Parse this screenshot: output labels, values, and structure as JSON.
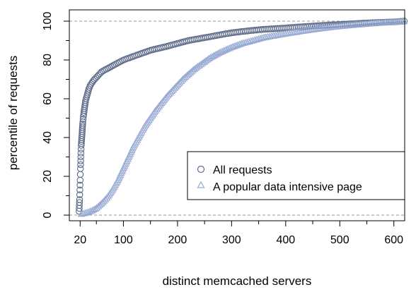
{
  "chart_data": {
    "type": "scatter",
    "title": "",
    "xlabel": "distinct memcached servers",
    "ylabel": "percentile of requests",
    "xlim": [
      0,
      620
    ],
    "ylim": [
      0,
      100
    ],
    "x_ticks": [
      20,
      100,
      200,
      300,
      400,
      500,
      600
    ],
    "y_ticks": [
      0,
      20,
      40,
      60,
      80,
      100
    ],
    "reference_lines_y": [
      0,
      100
    ],
    "grid": false,
    "legend_position": "bottom-right",
    "series": [
      {
        "name": "All requests",
        "marker": "circle",
        "color": "#5c6b8a",
        "points": [
          [
            18,
            2
          ],
          [
            19,
            8
          ],
          [
            19.5,
            13
          ],
          [
            20,
            18
          ],
          [
            20.5,
            24
          ],
          [
            21,
            28
          ],
          [
            21.5,
            32
          ],
          [
            22,
            36
          ],
          [
            23,
            40
          ],
          [
            24,
            44
          ],
          [
            25,
            48
          ],
          [
            26,
            51
          ],
          [
            27,
            53
          ],
          [
            28,
            55
          ],
          [
            29,
            57
          ],
          [
            30,
            59
          ],
          [
            32,
            61
          ],
          [
            34,
            63
          ],
          [
            36,
            65
          ],
          [
            38,
            66.5
          ],
          [
            40,
            67.5
          ],
          [
            45,
            69.5
          ],
          [
            50,
            71
          ],
          [
            55,
            72.5
          ],
          [
            60,
            74
          ],
          [
            70,
            75.5
          ],
          [
            80,
            77
          ],
          [
            90,
            78.5
          ],
          [
            100,
            80
          ],
          [
            110,
            81
          ],
          [
            120,
            82
          ],
          [
            130,
            83
          ],
          [
            140,
            84
          ],
          [
            150,
            85
          ],
          [
            165,
            86
          ],
          [
            180,
            87
          ],
          [
            200,
            88.5
          ],
          [
            220,
            90
          ],
          [
            240,
            91
          ],
          [
            260,
            92
          ],
          [
            280,
            93
          ],
          [
            300,
            94
          ],
          [
            330,
            95
          ],
          [
            360,
            95.8
          ],
          [
            400,
            96.5
          ],
          [
            440,
            97.3
          ],
          [
            480,
            98
          ],
          [
            520,
            98.6
          ],
          [
            560,
            99.2
          ],
          [
            600,
            99.6
          ],
          [
            620,
            100
          ]
        ]
      },
      {
        "name": "A popular data intensive page",
        "marker": "triangle",
        "color": "#98aad4",
        "points": [
          [
            22,
            0.5
          ],
          [
            30,
            1
          ],
          [
            40,
            2
          ],
          [
            50,
            3.5
          ],
          [
            60,
            6
          ],
          [
            70,
            9
          ],
          [
            80,
            13
          ],
          [
            90,
            18
          ],
          [
            100,
            24
          ],
          [
            110,
            30
          ],
          [
            120,
            36
          ],
          [
            130,
            41
          ],
          [
            140,
            46
          ],
          [
            150,
            50
          ],
          [
            160,
            54
          ],
          [
            170,
            57.5
          ],
          [
            180,
            61
          ],
          [
            190,
            64
          ],
          [
            200,
            67
          ],
          [
            210,
            70
          ],
          [
            220,
            72.5
          ],
          [
            230,
            75
          ],
          [
            240,
            77
          ],
          [
            250,
            79
          ],
          [
            260,
            81
          ],
          [
            270,
            82.5
          ],
          [
            280,
            84
          ],
          [
            300,
            86.5
          ],
          [
            320,
            88.5
          ],
          [
            340,
            90
          ],
          [
            360,
            91.5
          ],
          [
            380,
            92.5
          ],
          [
            400,
            93.5
          ],
          [
            430,
            94.8
          ],
          [
            460,
            96
          ],
          [
            490,
            97
          ],
          [
            520,
            97.8
          ],
          [
            550,
            98.5
          ],
          [
            580,
            99.1
          ],
          [
            620,
            99.8
          ]
        ]
      }
    ]
  }
}
